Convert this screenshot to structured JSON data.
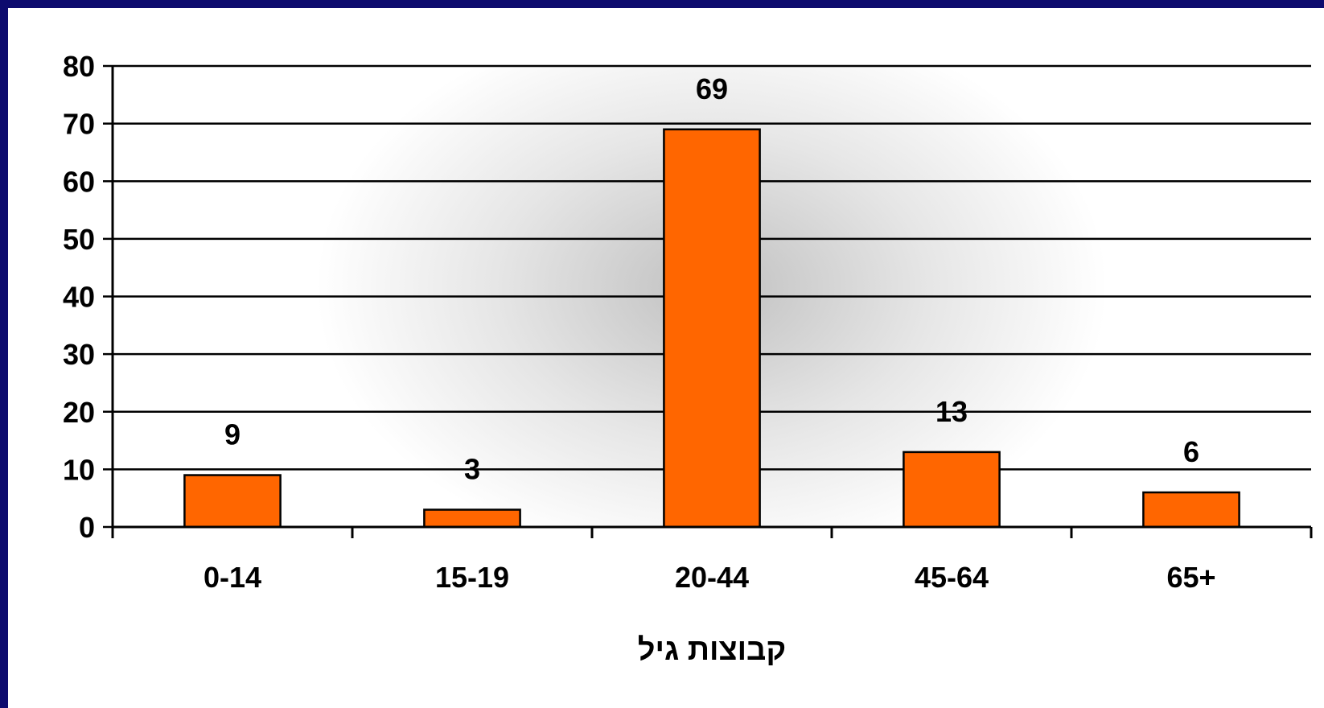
{
  "chart_data": {
    "type": "bar",
    "categories": [
      "0-14",
      "15-19",
      "20-44",
      "45-64",
      "65+"
    ],
    "values": [
      9,
      3,
      69,
      13,
      6
    ],
    "data_labels": [
      "9",
      "3",
      "69",
      "13",
      "6"
    ],
    "xlabel": "קבוצות גיל",
    "ylabel": "",
    "ylim": [
      0,
      80
    ],
    "yticks": [
      "0",
      "10",
      "20",
      "30",
      "40",
      "50",
      "60",
      "70",
      "80"
    ],
    "grid": true,
    "legend": "none",
    "colors": {
      "bar": "#ff6600",
      "frame": "#0d0b6e",
      "gridline": "#000000"
    }
  }
}
